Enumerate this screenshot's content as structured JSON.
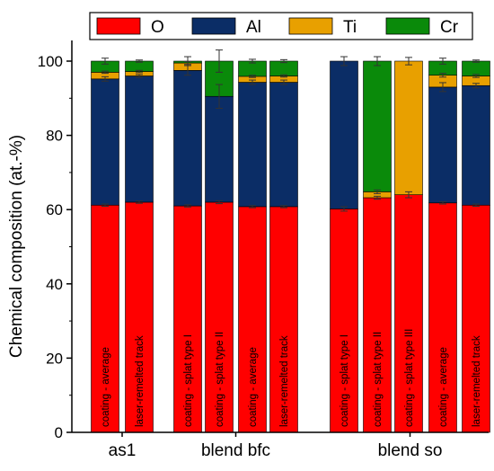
{
  "chart_data": {
    "type": "bar",
    "stacked": true,
    "ylabel": "Chemical composition (at.-%)",
    "ylim": [
      0,
      100
    ],
    "yticks": [
      0,
      20,
      40,
      60,
      80,
      100
    ],
    "legend": {
      "placement": "top",
      "entries": [
        "O",
        "Al",
        "Ti",
        "Cr"
      ]
    },
    "groups": [
      {
        "label": "as1",
        "bars": [
          0,
          1
        ]
      },
      {
        "label": "blend bfc",
        "bars": [
          2,
          3,
          4,
          5
        ]
      },
      {
        "label": "blend so",
        "bars": [
          6,
          7,
          8,
          9,
          10
        ]
      }
    ],
    "categories": [
      "coating - average",
      "laser-remelted track",
      "coating - splat type I",
      "coating - splat type II",
      "coating - average",
      "laser-remelted track",
      "coating - splat type I",
      "coating - splat type II",
      "coating - splat type III",
      "coating - average",
      "laser-remelted track"
    ],
    "series": [
      {
        "name": "O",
        "color": "#ff0000",
        "values": [
          61.2,
          62.0,
          61.0,
          62.0,
          60.8,
          60.8,
          60.2,
          63.2,
          64.0,
          61.8,
          61.2
        ]
      },
      {
        "name": "Al",
        "color": "#0b2d66",
        "values": [
          34.0,
          34.0,
          36.5,
          28.5,
          33.5,
          33.5,
          39.8,
          0.0,
          0.0,
          31.2,
          32.2
        ]
      },
      {
        "name": "Ti",
        "color": "#e8a000",
        "values": [
          1.8,
          1.2,
          2.0,
          0.0,
          1.6,
          1.7,
          0.0,
          1.6,
          36.0,
          3.2,
          2.6
        ]
      },
      {
        "name": "Cr",
        "color": "#0a8a0a",
        "values": [
          3.0,
          2.8,
          0.5,
          9.5,
          4.1,
          4.0,
          0.0,
          35.2,
          0.0,
          3.8,
          4.0
        ]
      }
    ],
    "error_bars": {
      "O": [
        0.3,
        0.3,
        0.3,
        0.4,
        0.3,
        0.3,
        0.6,
        0.4,
        0.8,
        0.3,
        0.3
      ],
      "Al": [
        0.6,
        0.4,
        1.3,
        3.2,
        0.6,
        0.6,
        1.2,
        0.0,
        0.0,
        1.2,
        0.6
      ],
      "Ti": [
        0.3,
        0.3,
        0.4,
        0.0,
        0.3,
        0.3,
        0.0,
        0.5,
        1.0,
        0.5,
        0.4
      ],
      "Cr": [
        0.8,
        0.3,
        1.2,
        3.0,
        0.5,
        0.4,
        0.0,
        1.2,
        0.0,
        0.8,
        0.3
      ]
    }
  }
}
